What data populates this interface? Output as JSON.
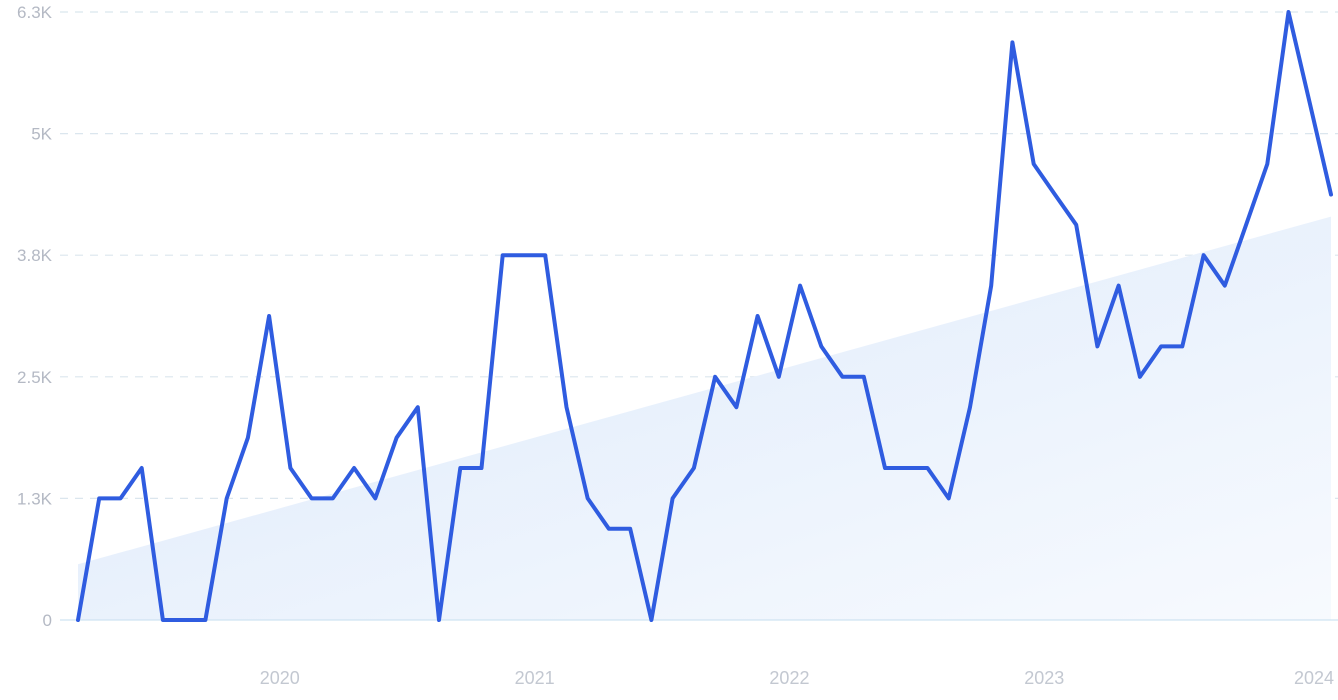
{
  "chart_data": {
    "type": "line",
    "title": "",
    "xlabel": "",
    "ylabel": "",
    "x_tick_labels": [
      "2020",
      "2021",
      "2022",
      "2023",
      "2024"
    ],
    "y_tick_labels": [
      "0",
      "1.3K",
      "2.5K",
      "3.8K",
      "5K",
      "6.3K"
    ],
    "y_tick_values": [
      0,
      1266,
      2532,
      3798,
      5064,
      6330
    ],
    "ylim": [
      0,
      6330
    ],
    "grid": true,
    "legend": "none",
    "colors": {
      "line": "#2f5ce0",
      "trend_fill": "#e3eefb",
      "grid": "#dbe6ee"
    },
    "trend": {
      "start": 580,
      "end": 4200
    },
    "series": [
      {
        "values": [
          0,
          1266,
          1266,
          1582,
          0,
          0,
          0,
          1266,
          1898,
          3165,
          1582,
          1266,
          1266,
          1582,
          1266,
          1898,
          2215,
          0,
          1582,
          1582,
          3798,
          3798,
          3798,
          2215,
          1266,
          950,
          950,
          0,
          1266,
          1582,
          2532,
          2215,
          3165,
          2532,
          3481,
          2848,
          2532,
          2532,
          1582,
          1582,
          1582,
          1266,
          2215,
          3481,
          6013,
          4747,
          4430,
          4114,
          2848,
          3481,
          2532,
          2848,
          2848,
          3798,
          3481,
          4114,
          4747,
          6330,
          5380,
          4430
        ]
      }
    ]
  }
}
